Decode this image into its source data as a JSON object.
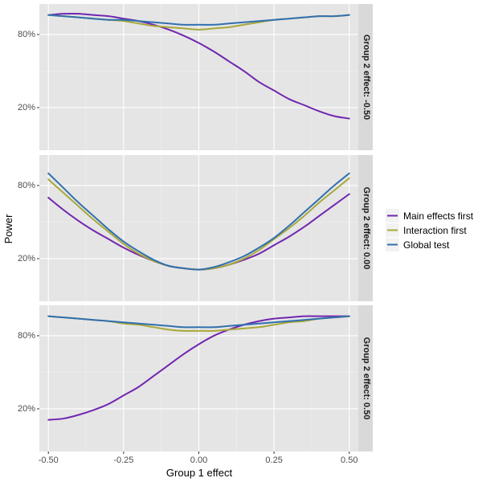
{
  "chart_data": {
    "type": "line",
    "xlabel": "Group 1 effect",
    "ylabel": "Power",
    "x_ticks": [
      "-0.50",
      "-0.25",
      "0.00",
      "0.25",
      "0.50"
    ],
    "x_tick_values": [
      -0.5,
      -0.25,
      0.0,
      0.25,
      0.5
    ],
    "y_ticks": [
      "20%",
      "80%"
    ],
    "y_tick_values": [
      0.2,
      0.8
    ],
    "xlim": [
      -0.53,
      0.53
    ],
    "ylim": [
      -0.15,
      1.05
    ],
    "grid": true,
    "legend_position": "right",
    "legend": [
      "Main effects first",
      "Interaction first",
      "Global test"
    ],
    "colors": {
      "Main effects first": "#7126B0",
      "Interaction first": "#A8A83A",
      "Global test": "#3070AF"
    },
    "x": [
      -0.5,
      -0.45,
      -0.4,
      -0.35,
      -0.3,
      -0.25,
      -0.2,
      -0.15,
      -0.1,
      -0.05,
      0.0,
      0.05,
      0.1,
      0.15,
      0.2,
      0.25,
      0.3,
      0.35,
      0.4,
      0.45,
      0.5
    ],
    "panels": [
      {
        "strip": "Group 2 effect: -0.50",
        "series": [
          {
            "name": "Main effects first",
            "values": [
              0.96,
              0.97,
              0.97,
              0.96,
              0.95,
              0.93,
              0.91,
              0.88,
              0.84,
              0.79,
              0.73,
              0.66,
              0.58,
              0.5,
              0.41,
              0.34,
              0.27,
              0.22,
              0.17,
              0.13,
              0.11
            ]
          },
          {
            "name": "Interaction first",
            "values": [
              0.96,
              0.95,
              0.94,
              0.93,
              0.92,
              0.91,
              0.89,
              0.87,
              0.86,
              0.85,
              0.84,
              0.85,
              0.86,
              0.88,
              0.9,
              0.92,
              0.93,
              0.94,
              0.95,
              0.95,
              0.96
            ]
          },
          {
            "name": "Global test",
            "values": [
              0.96,
              0.95,
              0.94,
              0.93,
              0.92,
              0.92,
              0.91,
              0.9,
              0.89,
              0.88,
              0.88,
              0.88,
              0.89,
              0.9,
              0.91,
              0.92,
              0.93,
              0.94,
              0.95,
              0.95,
              0.96
            ]
          }
        ]
      },
      {
        "strip": "Group 2 effect: 0.00",
        "series": [
          {
            "name": "Main effects first",
            "values": [
              0.7,
              0.6,
              0.51,
              0.43,
              0.36,
              0.29,
              0.23,
              0.18,
              0.14,
              0.12,
              0.11,
              0.12,
              0.15,
              0.19,
              0.24,
              0.31,
              0.38,
              0.46,
              0.55,
              0.64,
              0.73
            ]
          },
          {
            "name": "Interaction first",
            "values": [
              0.85,
              0.74,
              0.63,
              0.52,
              0.42,
              0.32,
              0.24,
              0.18,
              0.14,
              0.12,
              0.11,
              0.12,
              0.15,
              0.2,
              0.27,
              0.36,
              0.45,
              0.55,
              0.66,
              0.76,
              0.86
            ]
          },
          {
            "name": "Global test",
            "values": [
              0.9,
              0.78,
              0.66,
              0.55,
              0.44,
              0.34,
              0.26,
              0.19,
              0.14,
              0.12,
              0.11,
              0.13,
              0.17,
              0.22,
              0.29,
              0.37,
              0.47,
              0.58,
              0.69,
              0.8,
              0.9
            ]
          }
        ]
      },
      {
        "strip": "Group 2 effect: 0.50",
        "series": [
          {
            "name": "Main effects first",
            "values": [
              0.11,
              0.12,
              0.15,
              0.19,
              0.24,
              0.31,
              0.38,
              0.47,
              0.56,
              0.65,
              0.73,
              0.8,
              0.85,
              0.89,
              0.92,
              0.94,
              0.95,
              0.96,
              0.96,
              0.96,
              0.96
            ]
          },
          {
            "name": "Interaction first",
            "values": [
              0.96,
              0.95,
              0.94,
              0.93,
              0.92,
              0.9,
              0.89,
              0.87,
              0.85,
              0.84,
              0.84,
              0.84,
              0.85,
              0.86,
              0.87,
              0.89,
              0.91,
              0.92,
              0.94,
              0.95,
              0.96
            ]
          },
          {
            "name": "Global test",
            "values": [
              0.96,
              0.95,
              0.94,
              0.93,
              0.92,
              0.91,
              0.9,
              0.89,
              0.88,
              0.87,
              0.87,
              0.87,
              0.88,
              0.89,
              0.9,
              0.91,
              0.92,
              0.93,
              0.94,
              0.95,
              0.96
            ]
          }
        ]
      }
    ]
  }
}
